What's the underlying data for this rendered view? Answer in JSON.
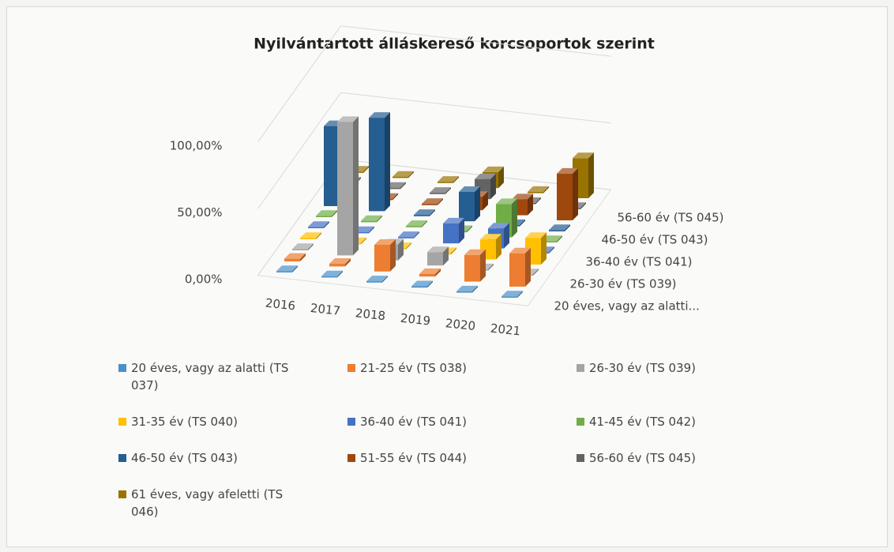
{
  "chart_data": {
    "type": "bar3d",
    "title": "Nyilvántartott álláskereső korcsoportok szerint",
    "categories": [
      "2016",
      "2017",
      "2018",
      "2019",
      "2020",
      "2021"
    ],
    "depth_labels": [
      "20 éves, vagy az alatti...",
      null,
      "26-30 év (TS 039)",
      null,
      "36-40 év (TS 041)",
      null,
      "46-50 év (TS 043)",
      null,
      "56-60 év (TS 045)",
      null
    ],
    "ylim": [
      0,
      100
    ],
    "yticks": [
      {
        "value": 0,
        "label": "0,00%"
      },
      {
        "value": 50,
        "label": "50,00%"
      },
      {
        "value": 100,
        "label": "100,00%"
      }
    ],
    "grid": true,
    "series": [
      {
        "name": "20 éves, vagy az alatti (TS 037)",
        "color": "#4a90c8",
        "values": [
          1,
          1,
          1,
          1,
          1,
          1
        ]
      },
      {
        "name": "21-25 év (TS 038)",
        "color": "#ed7d31",
        "values": [
          2,
          2,
          20,
          2,
          20,
          25
        ]
      },
      {
        "name": "26-30 év (TS 039)",
        "color": "#a5a5a5",
        "values": [
          1,
          100,
          12,
          10,
          1,
          1
        ]
      },
      {
        "name": "31-35 év (TS 040)",
        "color": "#ffc000",
        "values": [
          1,
          1,
          1,
          1,
          15,
          20
        ]
      },
      {
        "name": "36-40 év (TS 041)",
        "color": "#4472c4",
        "values": [
          1,
          1,
          1,
          15,
          15,
          1
        ]
      },
      {
        "name": "41-45 év (TS 042)",
        "color": "#70ad47",
        "values": [
          1,
          1,
          1,
          1,
          25,
          1
        ]
      },
      {
        "name": "46-50 év (TS 043)",
        "color": "#255e91",
        "values": [
          60,
          70,
          1,
          22,
          1,
          1
        ]
      },
      {
        "name": "51-55 év (TS 044)",
        "color": "#9e480e",
        "values": [
          1,
          1,
          1,
          10,
          12,
          35
        ]
      },
      {
        "name": "56-60 év (TS 045)",
        "color": "#636363",
        "values": [
          1,
          1,
          1,
          15,
          1,
          1
        ]
      },
      {
        "name": "61 éves, vagy afeletti (TS 046)",
        "color": "#997300",
        "values": [
          1,
          1,
          1,
          12,
          1,
          30
        ]
      }
    ]
  }
}
